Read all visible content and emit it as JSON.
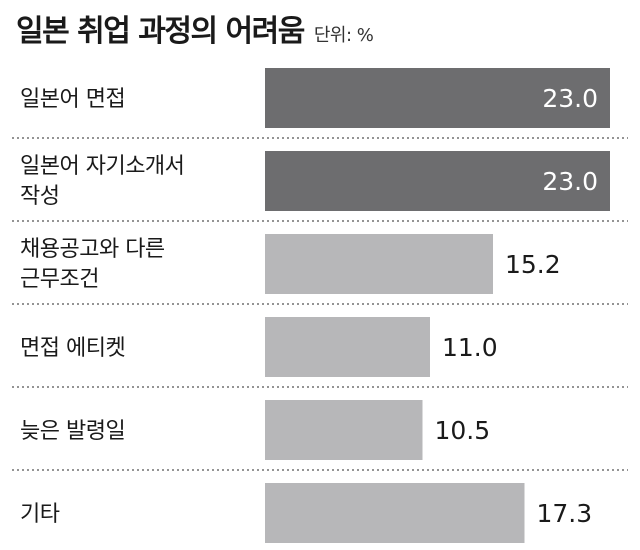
{
  "title": "일본 취업 과정의 어려움",
  "unit": "단위: %",
  "chart_data": {
    "type": "bar",
    "orientation": "horizontal",
    "title": "일본 취업 과정의 어려움",
    "unit": "단위: %",
    "categories": [
      [
        "일본어 면접"
      ],
      [
        "일본어 자기소개서",
        "작성"
      ],
      [
        "채용공고와 다른",
        "근무조건"
      ],
      [
        "면접 에티켓"
      ],
      [
        "늦은 발령일"
      ],
      [
        "기타"
      ]
    ],
    "values": [
      23.0,
      23.0,
      15.2,
      11.0,
      10.5,
      17.3
    ],
    "value_labels": [
      "23.0",
      "23.0",
      "15.2",
      "11.0",
      "10.5",
      "17.3"
    ],
    "xlim": [
      0,
      23.0
    ],
    "highlight_color": "#6d6d6f",
    "bar_color": "#b7b7b9",
    "grid": false,
    "legend": "none"
  }
}
